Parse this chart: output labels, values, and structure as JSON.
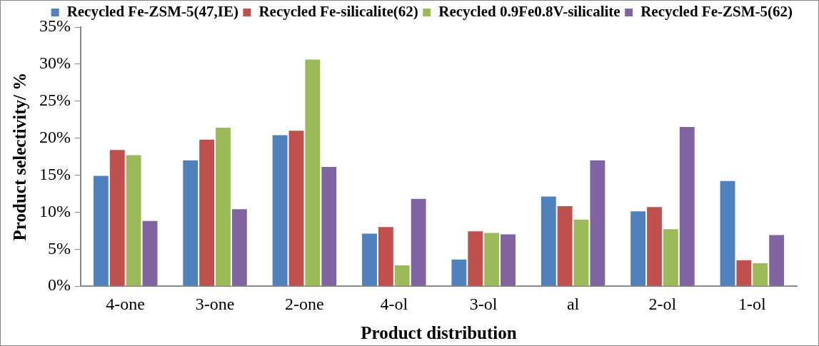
{
  "chart_data": {
    "type": "bar",
    "xlabel": "Product distribution",
    "ylabel": "Product selectivity/ %",
    "categories": [
      "4-one",
      "3-one",
      "2-one",
      "4-ol",
      "3-ol",
      "al",
      "2-ol",
      "1-ol"
    ],
    "series": [
      {
        "name": "Recycled Fe-ZSM-5(47,IE)",
        "color": "#4f81bd",
        "values": [
          15.0,
          17.1,
          20.5,
          7.2,
          3.7,
          12.2,
          10.2,
          14.3
        ]
      },
      {
        "name": "Recycled Fe-silicalite(62)",
        "color": "#c0504d",
        "values": [
          18.5,
          19.9,
          21.1,
          8.1,
          7.5,
          10.9,
          10.8,
          3.6
        ]
      },
      {
        "name": "Recycled 0.9Fe0.8V-silicalite",
        "color": "#9bbb59",
        "values": [
          17.8,
          21.5,
          30.7,
          2.9,
          7.3,
          9.1,
          7.8,
          3.2
        ]
      },
      {
        "name": "Recycled Fe-ZSM-5(62)",
        "color": "#8064a2",
        "values": [
          8.9,
          10.5,
          16.2,
          11.9,
          7.1,
          17.1,
          21.6,
          7.0
        ]
      }
    ],
    "ylim": [
      0,
      35
    ],
    "yticks": [
      {
        "value": 0,
        "label": "0%"
      },
      {
        "value": 5,
        "label": "5%"
      },
      {
        "value": 10,
        "label": "10%"
      },
      {
        "value": 15,
        "label": "15%"
      },
      {
        "value": 20,
        "label": "20%"
      },
      {
        "value": 25,
        "label": "25%"
      },
      {
        "value": 30,
        "label": "30%"
      },
      {
        "value": 35,
        "label": "35%"
      }
    ],
    "grid": false,
    "legend": "top"
  }
}
